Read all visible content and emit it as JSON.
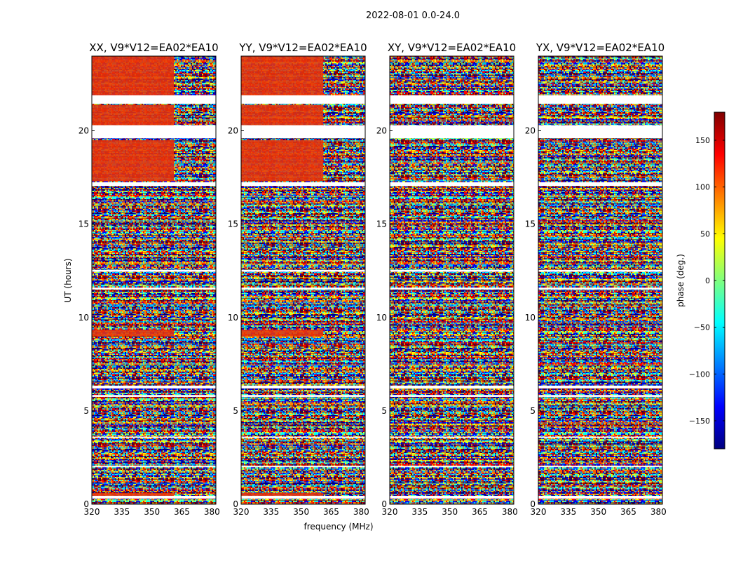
{
  "chart_data": {
    "type": "heatmap",
    "title": "2022-08-01 0.0-24.0",
    "xlabel": "frequency (MHz)",
    "ylabel": "UT (hours)",
    "xlim": [
      320,
      382
    ],
    "ylim": [
      0,
      24
    ],
    "x_ticks": [
      320,
      335,
      350,
      365,
      380
    ],
    "y_ticks": [
      0,
      5,
      10,
      15,
      20
    ],
    "colorbar": {
      "label": "phase (deg.)",
      "range": [
        -180,
        180
      ],
      "ticks": [
        150,
        100,
        50,
        0,
        -50,
        -100,
        -150
      ],
      "tick_labels": [
        "150",
        "100",
        "50",
        "0",
        "−50",
        "−100",
        "−150"
      ],
      "colormap": "jet",
      "colors": [
        "#00007f",
        "#0000ff",
        "#007fff",
        "#00ffff",
        "#7fff7f",
        "#ffff00",
        "#ff7f00",
        "#ff0000",
        "#7f0000"
      ]
    },
    "panels": [
      {
        "title": "XX, V9*V12=EA02*EA10",
        "polarization": "XX"
      },
      {
        "title": "YY, V9*V12=EA02*EA10",
        "polarization": "YY"
      },
      {
        "title": "XY, V9*V12=EA02*EA10",
        "polarization": "XY"
      },
      {
        "title": "YX, V9*V12=EA02*EA10",
        "polarization": "YX"
      }
    ],
    "flagged_ut_ranges": [
      [
        21.9,
        21.45
      ],
      [
        20.3,
        19.6
      ],
      [
        17.25,
        17.05
      ],
      [
        12.55,
        12.45
      ],
      [
        11.6,
        11.5
      ],
      [
        6.35,
        6.2
      ],
      [
        5.85,
        5.75
      ],
      [
        3.62,
        3.55
      ],
      [
        2.05,
        1.98
      ],
      [
        0.45,
        0.3
      ]
    ],
    "coherent_phase_ut_ranges": [
      [
        21.8,
        24.0
      ],
      [
        19.6,
        21.4
      ],
      [
        17.3,
        19.5
      ],
      [
        9.0,
        9.35
      ],
      [
        0.3,
        0.6
      ]
    ],
    "coherent_phase_max_freq": 361
  }
}
